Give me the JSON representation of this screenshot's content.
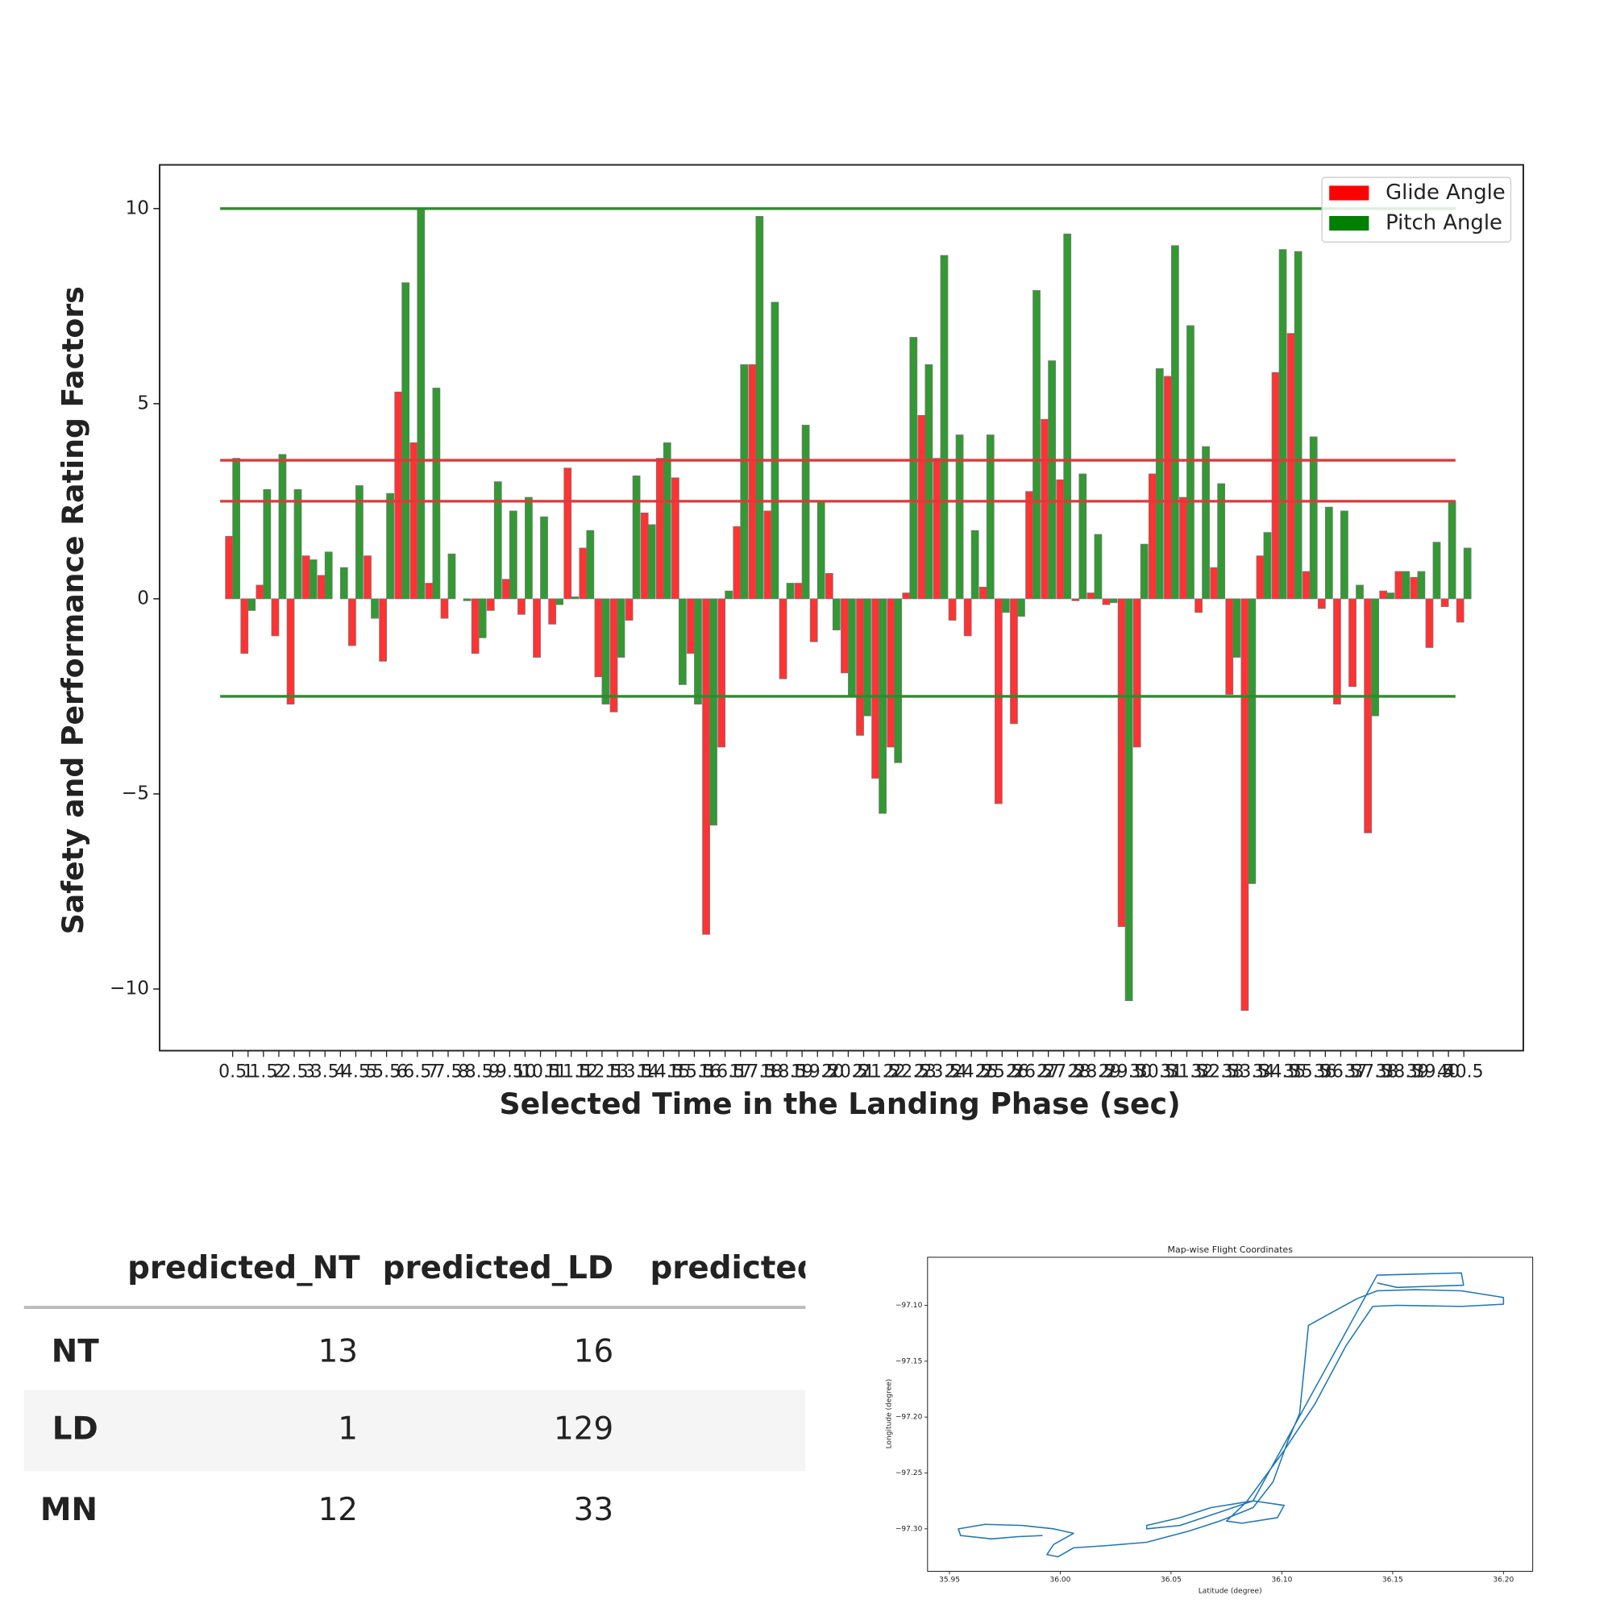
{
  "chart_data": [
    {
      "type": "bar",
      "x_label": "Selected Time in the Landing Phase (sec)",
      "y_label": "Safety and Performance Rating Factors",
      "categories": [
        "0.5",
        "1",
        "1.5",
        "2",
        "2.5",
        "3",
        "3.5",
        "4",
        "4.5",
        "5",
        "5.5",
        "6",
        "6.5",
        "7",
        "7.5",
        "8",
        "8.5",
        "9",
        "9.5",
        "10",
        "10.5",
        "11",
        "11.5",
        "12",
        "12.5",
        "13",
        "13.5",
        "14",
        "14.5",
        "15",
        "15.5",
        "16",
        "16.5",
        "17",
        "17.5",
        "18",
        "18.5",
        "19",
        "19.5",
        "20",
        "20.5",
        "21",
        "21.5",
        "22",
        "22.5",
        "23",
        "23.5",
        "24",
        "24.5",
        "25",
        "25.5",
        "26",
        "26.5",
        "27",
        "27.5",
        "28",
        "28.5",
        "29",
        "29.5",
        "30",
        "30.5",
        "31",
        "31.5",
        "32",
        "32.5",
        "33",
        "33.5",
        "34",
        "34.5",
        "35",
        "35.5",
        "36",
        "36.5",
        "37",
        "37.5",
        "38",
        "38.5",
        "39",
        "39.5",
        "40",
        "40.5"
      ],
      "series": [
        {
          "name": "Glide Angle",
          "color": "#ff0000",
          "values": [
            1.6,
            -1.4,
            0.35,
            -0.95,
            -2.7,
            1.1,
            0.6,
            0,
            -1.2,
            1.1,
            -1.6,
            5.3,
            4.0,
            0.4,
            -0.5,
            0,
            -1.4,
            -0.3,
            0.5,
            -0.4,
            -1.5,
            -0.65,
            3.35,
            1.3,
            -2.0,
            -2.9,
            -0.55,
            2.2,
            3.6,
            3.1,
            -1.4,
            -8.6,
            -3.8,
            1.85,
            6.0,
            2.25,
            -2.05,
            0.4,
            -1.1,
            0.65,
            -1.9,
            -3.5,
            -4.6,
            -3.8,
            0.15,
            4.7,
            3.6,
            -0.55,
            -0.95,
            0.3,
            -5.25,
            -3.2,
            2.75,
            4.6,
            3.05,
            -0.05,
            0.15,
            -0.15,
            -8.4,
            -3.8,
            3.2,
            5.7,
            2.6,
            -0.35,
            0.8,
            -2.45,
            -10.55,
            1.1,
            5.8,
            6.8,
            0.7,
            -0.25,
            -2.7,
            -2.25,
            -6.0,
            0.2,
            0.7,
            0.55,
            -1.25,
            -0.2,
            -0.6
          ]
        },
        {
          "name": "Pitch Angle",
          "color": "#008000",
          "values": [
            3.6,
            -0.3,
            2.8,
            3.7,
            2.8,
            1.0,
            1.2,
            0.8,
            2.9,
            -0.5,
            2.7,
            8.1,
            10.0,
            5.4,
            1.15,
            -0.05,
            -1.0,
            3.0,
            2.25,
            2.6,
            2.1,
            -0.15,
            0.05,
            1.75,
            -2.7,
            -1.5,
            3.15,
            1.9,
            4.0,
            -2.2,
            -2.7,
            -5.8,
            0.2,
            6.0,
            9.8,
            7.6,
            0.4,
            4.45,
            2.5,
            -0.8,
            -2.5,
            -3.0,
            -5.5,
            -4.2,
            6.7,
            6.0,
            8.8,
            4.2,
            1.75,
            4.2,
            -0.35,
            -0.45,
            7.9,
            6.1,
            9.35,
            3.2,
            1.65,
            -0.1,
            -10.3,
            1.4,
            5.9,
            9.05,
            7.0,
            3.9,
            2.95,
            -1.5,
            -7.3,
            1.7,
            8.95,
            8.9,
            4.15,
            2.35,
            2.25,
            0.35,
            -3.0,
            0.15,
            0.7,
            0.7,
            1.45,
            2.5,
            1.3
          ]
        }
      ],
      "reference_lines": [
        {
          "value": 10,
          "color": "#2e8b2e"
        },
        {
          "value": -2.5,
          "color": "#2e8b2e"
        },
        {
          "value": 3.55,
          "color": "#dd3a3a"
        },
        {
          "value": 2.5,
          "color": "#dd3a3a"
        }
      ],
      "ylim": [
        -11.58,
        11.12
      ],
      "yticks": [
        {
          "value": -10,
          "label": "−10"
        },
        {
          "value": -5,
          "label": "−5"
        },
        0,
        5,
        10
      ],
      "legend": "upper right"
    },
    {
      "type": "line",
      "title": "Map-wise Flight Coordinates",
      "x_label": "Latitude (degree)",
      "y_label": "Longitude (degree)",
      "color": "#1f77b4",
      "x": [
        35.992,
        35.981,
        35.969,
        35.955,
        35.954,
        35.966,
        35.983,
        35.997,
        36.006,
        35.997,
        35.994,
        35.999,
        36.006,
        36.021,
        36.039,
        36.058,
        36.072,
        36.087,
        36.096,
        36.103,
        36.108,
        36.112,
        36.122,
        36.134,
        36.143,
        36.16,
        36.181,
        36.2,
        36.2,
        36.181,
        36.152,
        36.141,
        36.129,
        36.115,
        36.101,
        36.084,
        36.075,
        36.082,
        36.098,
        36.101,
        36.087,
        36.068,
        36.054,
        36.039,
        36.039,
        36.054,
        36.087,
        36.143,
        36.181,
        36.182,
        36.152,
        36.143
      ],
      "values": [
        -97.306,
        -97.307,
        -97.309,
        -97.306,
        -97.3,
        -97.296,
        -97.297,
        -97.3,
        -97.304,
        -97.314,
        -97.323,
        -97.325,
        -97.317,
        -97.315,
        -97.312,
        -97.302,
        -97.293,
        -97.281,
        -97.258,
        -97.22,
        -97.197,
        -97.118,
        -97.107,
        -97.094,
        -97.087,
        -97.086,
        -97.087,
        -97.093,
        -97.099,
        -97.101,
        -97.1,
        -97.101,
        -97.136,
        -97.188,
        -97.23,
        -97.276,
        -97.293,
        -97.295,
        -97.29,
        -97.279,
        -97.275,
        -97.281,
        -97.29,
        -97.297,
        -97.3,
        -97.297,
        -97.275,
        -97.073,
        -97.071,
        -97.082,
        -97.084,
        -97.08
      ],
      "xlim": [
        35.9401,
        36.2132
      ],
      "xticks": [
        35.95,
        {
          "value": 36,
          "label": "36.00"
        },
        36.05,
        {
          "value": 36.1,
          "label": "36.10"
        },
        36.15,
        {
          "value": 36.2,
          "label": "36.20"
        }
      ],
      "ylim": [
        -97.338,
        -97.057
      ],
      "yticks": [
        {
          "value": -97.1,
          "label": "−97.10"
        },
        {
          "value": -97.15,
          "label": "−97.15"
        },
        {
          "value": -97.2,
          "label": "−97.20"
        },
        {
          "value": -97.25,
          "label": "−97.25"
        },
        {
          "value": -97.3,
          "label": "−97.30"
        }
      ]
    }
  ],
  "table": {
    "columns": [
      "predicted_NT",
      "predicted_LD",
      "predicted"
    ],
    "rows": [
      {
        "label": "NT",
        "values": [
          13,
          16
        ]
      },
      {
        "label": "LD",
        "values": [
          1,
          129
        ]
      },
      {
        "label": "MN",
        "values": [
          12,
          33
        ]
      }
    ]
  }
}
